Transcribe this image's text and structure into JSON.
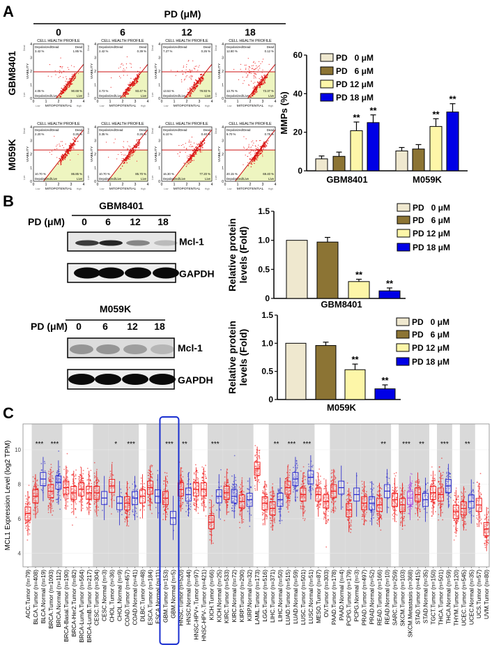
{
  "panels": {
    "a": "A",
    "b": "B",
    "c": "C"
  },
  "panel_a": {
    "header": "PD (μM)",
    "doses": [
      "0",
      "6",
      "12",
      "18"
    ],
    "row_labels": [
      "GBM8401",
      "M059K"
    ],
    "flow": {
      "title": "CELL HEALTH PROFILE",
      "x_label": "MITOPOTENTIAL",
      "y_label": "VIABILITY",
      "x_low": "Low",
      "x_high": "High",
      "y_low": "Live",
      "y_high": "Dead",
      "ticks": [
        "0",
        "1",
        "2",
        "3",
        "4"
      ],
      "quadrant_names": {
        "dep_dead": "Depolarized/Dead",
        "dead": "Dead",
        "dep_live": "Depolarized/Live",
        "live": "Live"
      },
      "rows": [
        [
          {
            "dep_dead": "3.42 %",
            "dead": "1.85 %",
            "dep_live": "4.05 %",
            "live": "90.69 %"
          },
          {
            "dep_dead": "2.42 %",
            "dead": "0.39 %",
            "dep_live": "3.73 %",
            "live": "93.47 %"
          },
          {
            "dep_dead": "7.27 %",
            "dead": "0.26 %",
            "dep_live": "13.53 %",
            "live": "78.93 %"
          },
          {
            "dep_dead": "12.80 %",
            "dead": "0.12 %",
            "dep_live": "13.75 %",
            "live": "73.37 %"
          }
        ],
        [
          {
            "dep_dead": "2.20 %",
            "dead": "0.25 %",
            "dep_live": "10.70 %",
            "live": "86.85 %"
          },
          {
            "dep_dead": "3.35 %",
            "dead": "0.25 %",
            "dep_live": "10.70 %",
            "live": "85.70 %"
          },
          {
            "dep_dead": "6.10 %",
            "dead": "0.40 %",
            "dep_live": "16.30 %",
            "live": "77.20 %"
          },
          {
            "dep_dead": "9.70 %",
            "dead": "0.75 %",
            "dep_live": "20.15 %",
            "live": "69.40 %"
          }
        ]
      ]
    }
  },
  "panel_b": {
    "blots": [
      {
        "cell_line": "GBM8401",
        "dose_label": "PD (μM)",
        "doses": [
          "0",
          "6",
          "12",
          "18"
        ],
        "bands": [
          "Mcl-1",
          "GAPDH"
        ]
      },
      {
        "cell_line": "M059K",
        "dose_label": "PD (μM)",
        "doses": [
          "0",
          "6",
          "12",
          "18"
        ],
        "bands": [
          "Mcl-1",
          "GAPDH"
        ]
      }
    ]
  },
  "colors": {
    "pd0": "#efe8cf",
    "pd6": "#8c7434",
    "pd12": "#fdf6a8",
    "pd18": "#0000e6",
    "tumor": "#ee1111",
    "normal": "#2222cc",
    "metastasis": "#a040e0",
    "highlight": "#1a2fd0",
    "band_gray": "#d9d9d9",
    "flow_fill": "#eef5c0",
    "flow_line": "#cc1111"
  },
  "chart_data": [
    {
      "type": "bar",
      "panel": "A",
      "categories": [
        "GBM8401",
        "M059K"
      ],
      "ylabel": "MMPs (%)",
      "ylim": [
        0,
        60
      ],
      "yticks": [
        "0",
        "20",
        "40",
        "60"
      ],
      "legend": "top-left",
      "series": [
        {
          "name": "PD   0 μM",
          "values": [
            6.2,
            10.3
          ],
          "errors": [
            1.5,
            1.8
          ],
          "sig": [
            "",
            ""
          ]
        },
        {
          "name": "PD   6 μM",
          "values": [
            7.5,
            11.3
          ],
          "errors": [
            2.2,
            2.3
          ],
          "sig": [
            "",
            ""
          ]
        },
        {
          "name": "PD 12 μM",
          "values": [
            20.8,
            23.0
          ],
          "errors": [
            4.5,
            4.0
          ],
          "sig": [
            "**",
            "**"
          ]
        },
        {
          "name": "PD 18 μM",
          "values": [
            25.0,
            30.5
          ],
          "errors": [
            4.0,
            4.3
          ],
          "sig": [
            "**",
            "**"
          ]
        }
      ]
    },
    {
      "type": "bar",
      "panel": "B",
      "categories": [
        "GBM8401"
      ],
      "ylabel": [
        "Relative protein",
        "levels (Fold)"
      ],
      "ylim": [
        0,
        1.5
      ],
      "yticks": [
        "0",
        "0.5",
        "1.0",
        "1.5"
      ],
      "legend": "top-right",
      "series": [
        {
          "name": "PD   0 μM",
          "values": [
            1.0
          ],
          "errors": [
            0
          ],
          "sig": [
            ""
          ]
        },
        {
          "name": "PD   6 μM",
          "values": [
            0.97
          ],
          "errors": [
            0.08
          ],
          "sig": [
            ""
          ]
        },
        {
          "name": "PD 12 μM",
          "values": [
            0.29
          ],
          "errors": [
            0.04
          ],
          "sig": [
            "**"
          ]
        },
        {
          "name": "PD 18 μM",
          "values": [
            0.13
          ],
          "errors": [
            0.05
          ],
          "sig": [
            "**"
          ]
        }
      ]
    },
    {
      "type": "bar",
      "panel": "B",
      "categories": [
        "M059K"
      ],
      "ylabel": [
        "Relative protein",
        "levels (Fold)"
      ],
      "ylim": [
        0,
        1.5
      ],
      "yticks": [
        "0",
        "0.5",
        "1.0",
        "1.5"
      ],
      "legend": "top-right",
      "series": [
        {
          "name": "PD   0 μM",
          "values": [
            1.0
          ],
          "errors": [
            0
          ],
          "sig": [
            ""
          ]
        },
        {
          "name": "PD   6 μM",
          "values": [
            0.96
          ],
          "errors": [
            0.06
          ],
          "sig": [
            ""
          ]
        },
        {
          "name": "PD 12 μM",
          "values": [
            0.53
          ],
          "errors": [
            0.1
          ],
          "sig": [
            "**"
          ]
        },
        {
          "name": "PD 18 μM",
          "values": [
            0.19
          ],
          "errors": [
            0.07
          ],
          "sig": [
            "**"
          ]
        }
      ]
    },
    {
      "type": "box",
      "panel": "C",
      "ylabel": "MCL1 Expression Level (log2 TPM)",
      "ylim": [
        3.6,
        11.9
      ],
      "yticks": [
        "4",
        "6",
        "8",
        "10"
      ],
      "grid": true,
      "highlight": "GBM",
      "categories": [
        {
          "label": "ACC.Tumor (n=79)",
          "median": 6.3
        },
        {
          "label": "BLCA.Tumor (n=408)",
          "median": 7.3
        },
        {
          "label": "BLCA.Normal (n=19)",
          "median": 8.3
        },
        {
          "label": "BRCA.Tumor (n=1093)",
          "median": 7.6
        },
        {
          "label": "BRCA.Normal (n=112)",
          "median": 8.1
        },
        {
          "label": "BRCA-Basal.Tumor (n=190)",
          "median": 7.8
        },
        {
          "label": "BRCA-Her2.Tumor (n=82)",
          "median": 7.5
        },
        {
          "label": "BRCA-LumA.Tumor (n=564)",
          "median": 7.7
        },
        {
          "label": "BRCA-LumB.Tumor (n=217)",
          "median": 7.5
        },
        {
          "label": "CESC.Tumor (n=304)",
          "median": 7.5
        },
        {
          "label": "CESC.Normal (n=3)",
          "median": 7.2
        },
        {
          "label": "CHOL.Tumor (n=36)",
          "median": 7.9
        },
        {
          "label": "CHOL.Normal (n=9)",
          "median": 6.9
        },
        {
          "label": "COAD.Tumor (n=457)",
          "median": 6.9
        },
        {
          "label": "COAD.Normal (n=41)",
          "median": 7.2
        },
        {
          "label": "DLBC.Tumor (n=48)",
          "median": 7.3
        },
        {
          "label": "ESCA.Tumor (n=184)",
          "median": 7.8
        },
        {
          "label": "ESCA.Normal (n=11)",
          "median": 7.3
        },
        {
          "label": "GBM.Tumor (n=153)",
          "median": 7.2
        },
        {
          "label": "GBM.Normal (n=5)",
          "median": 6.05
        },
        {
          "label": "HNSC.Tumor (n=520)",
          "median": 7.7
        },
        {
          "label": "HNSC.Normal (n=44)",
          "median": 7.4
        },
        {
          "label": "HNSC-HPV+.Tumor (n=97)",
          "median": 7.7
        },
        {
          "label": "HNSC-HPV-.Tumor (n=421)",
          "median": 7.7
        },
        {
          "label": "KICH.Tumor (n=66)",
          "median": 5.8
        },
        {
          "label": "KICH.Normal (n=25)",
          "median": 7.3
        },
        {
          "label": "KIRC.Tumor (n=533)",
          "median": 7.5
        },
        {
          "label": "KIRC.Normal (n=72)",
          "median": 7.3
        },
        {
          "label": "KIRP.Tumor (n=290)",
          "median": 7.0
        },
        {
          "label": "KIRP.Normal (n=32)",
          "median": 7.1
        },
        {
          "label": "LAML.Tumor (n=173)",
          "median": 8.9
        },
        {
          "label": "LGG.Tumor (n=516)",
          "median": 6.9
        },
        {
          "label": "LIHC.Tumor (n=371)",
          "median": 6.6
        },
        {
          "label": "LIHC.Normal (n=50)",
          "median": 7.1
        },
        {
          "label": "LUAD.Tumor (n=515)",
          "median": 7.8
        },
        {
          "label": "LUAD.Normal (n=59)",
          "median": 8.3
        },
        {
          "label": "LUSC.Tumor (n=501)",
          "median": 7.4
        },
        {
          "label": "LUSC.Normal (n=51)",
          "median": 8.4
        },
        {
          "label": "MESO.Tumor (n=87)",
          "median": 7.4
        },
        {
          "label": "OV.Tumor (n=303)",
          "median": 7.0
        },
        {
          "label": "PAAD.Tumor (n=178)",
          "median": 7.6
        },
        {
          "label": "PAAD.Normal (n=4)",
          "median": 7.8
        },
        {
          "label": "PCPG.Tumor (n=179)",
          "median": 6.5
        },
        {
          "label": "PCPG.Normal (n=3)",
          "median": 7.4
        },
        {
          "label": "PRAD.Tumor (n=497)",
          "median": 6.9
        },
        {
          "label": "PRAD.Normal (n=52)",
          "median": 6.9
        },
        {
          "label": "READ.Tumor (n=166)",
          "median": 6.8
        },
        {
          "label": "READ.Normal (n=10)",
          "median": 7.6
        },
        {
          "label": "SARC.Tumor (n=259)",
          "median": 7.1
        },
        {
          "label": "SKCM.Tumor (n=103)",
          "median": 6.8
        },
        {
          "label": "SKCM.Metastasis (n=368)",
          "median": 7.2
        },
        {
          "label": "STAD.Tumor (n=415)",
          "median": 7.4
        },
        {
          "label": "STAD.Normal (n=35)",
          "median": 7.1
        },
        {
          "label": "TGCT.Tumor (n=150)",
          "median": 7.5
        },
        {
          "label": "THCA.Tumor (n=501)",
          "median": 7.4
        },
        {
          "label": "THCA.Normal (n=59)",
          "median": 7.9
        },
        {
          "label": "THYM.Tumor (n=120)",
          "median": 6.4
        },
        {
          "label": "UCEC.Tumor (n=545)",
          "median": 6.6
        },
        {
          "label": "UCEC.Normal (n=35)",
          "median": 7.0
        },
        {
          "label": "UCS.Tumor (n=57)",
          "median": 6.8
        },
        {
          "label": "UVM.Tumor (n=80)",
          "median": 5.4
        }
      ],
      "significance": [
        {
          "group": "BLCA",
          "label": "***"
        },
        {
          "group": "BRCA",
          "label": "***"
        },
        {
          "group": "CHOL",
          "label": "*"
        },
        {
          "group": "COAD",
          "label": "***"
        },
        {
          "group": "GBM",
          "label": "***"
        },
        {
          "group": "HNSC",
          "label": "**"
        },
        {
          "group": "KICH",
          "label": "***"
        },
        {
          "group": "LIHC",
          "label": "**"
        },
        {
          "group": "LUAD",
          "label": "***"
        },
        {
          "group": "LUSC",
          "label": "***"
        },
        {
          "group": "READ",
          "label": "**"
        },
        {
          "group": "SKCM",
          "label": "***"
        },
        {
          "group": "STAD",
          "label": "**"
        },
        {
          "group": "THCA",
          "label": "***"
        },
        {
          "group": "UCEC",
          "label": "**"
        }
      ]
    }
  ]
}
